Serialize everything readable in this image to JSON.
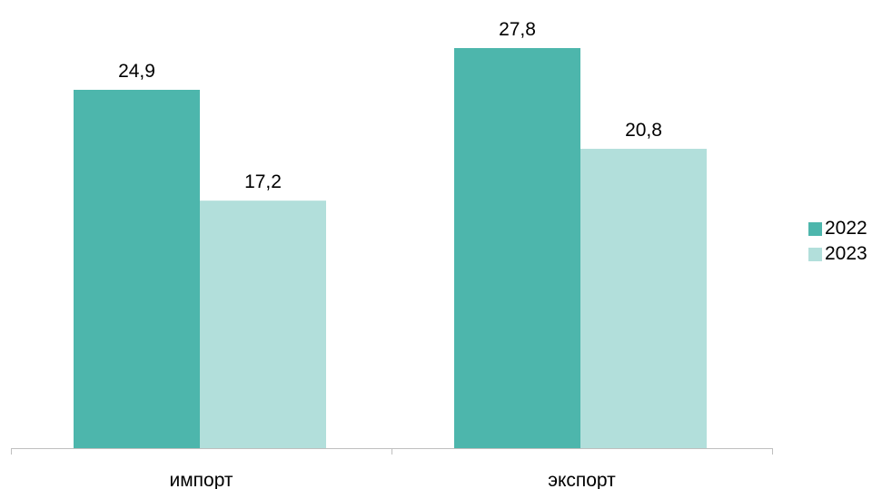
{
  "chart_data": {
    "type": "bar",
    "categories": [
      "импорт",
      "экспорт"
    ],
    "series": [
      {
        "name": "2022",
        "values": [
          24.9,
          27.8
        ],
        "labels": [
          "24,9",
          "27,8"
        ],
        "color": "#4db6ac"
      },
      {
        "name": "2023",
        "values": [
          17.2,
          20.8
        ],
        "labels": [
          "17,2",
          "20,8"
        ],
        "color": "#b2dfdb"
      }
    ],
    "ylim": [
      0,
      30
    ],
    "grid": false,
    "legend_position": "right"
  }
}
